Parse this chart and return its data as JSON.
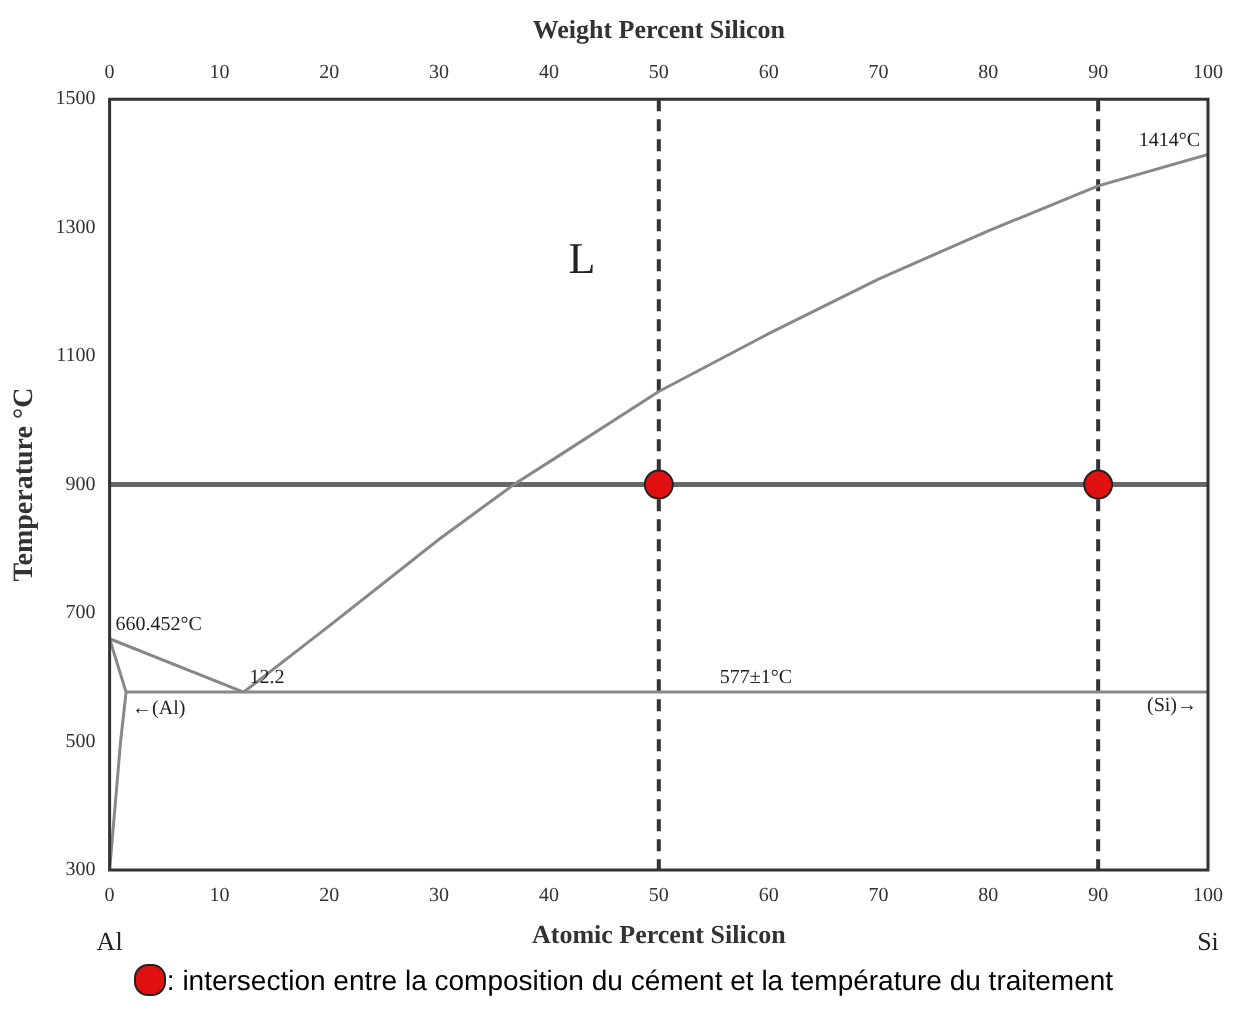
{
  "chart_data": {
    "type": "line",
    "xlabel": "Atomic Percent Silicon",
    "ylabel": "Temperature °C",
    "x2label": "Weight Percent Silicon",
    "xlim": [
      0,
      100
    ],
    "xticks": [
      0,
      10,
      20,
      30,
      40,
      50,
      60,
      70,
      80,
      90,
      100
    ],
    "x2lim": [
      0,
      100
    ],
    "x2ticks": [
      0,
      10,
      20,
      30,
      40,
      50,
      60,
      70,
      80,
      90,
      100
    ],
    "ylim": [
      300,
      1500
    ],
    "yticks": [
      300,
      500,
      700,
      900,
      1100,
      1300,
      1500
    ],
    "grid": false,
    "legend": "bottom",
    "marker": "none",
    "line_style": "solid",
    "series": [
      {
        "color": "#888888",
        "x": [
          12.2,
          20,
          30,
          36.8,
          40,
          50,
          60,
          70,
          80,
          90,
          100
        ],
        "values": [
          577,
          680,
          815,
          900,
          935,
          1045,
          1135,
          1220,
          1295,
          1365,
          1414
        ]
      },
      {
        "color": "#888888",
        "x": [
          0,
          12.2
        ],
        "values": [
          660,
          577
        ]
      },
      {
        "color": "#888888",
        "x": [
          0,
          1.5,
          1,
          0.5,
          0
        ],
        "values": [
          660,
          577,
          500,
          400,
          300
        ]
      },
      {
        "color": "#888888",
        "x": [
          1.5,
          100
        ],
        "values": [
          577,
          577
        ]
      },
      {
        "type": "scatter",
        "marker": "circle",
        "name": ": intersection entre la composition du cément et la température du traitement",
        "color": "#e01010",
        "x": [
          50,
          90
        ],
        "values": [
          900,
          900
        ]
      }
    ],
    "ref_lines": [
      {
        "axis": "x",
        "value": 50,
        "color": "#333333",
        "line_style": "dashed"
      },
      {
        "axis": "x",
        "value": 90,
        "color": "#333333",
        "line_style": "dashed"
      },
      {
        "axis": "y",
        "value": 900,
        "color": "#666666",
        "line_style": "solid"
      }
    ],
    "annotations": [
      "L",
      {
        "text": "1414°C",
        "x": 100,
        "y": 1414
      },
      {
        "text": "660.452°C",
        "x": 0,
        "y": 660
      },
      {
        "text": "12.2",
        "x": 12.2,
        "y": 577
      },
      {
        "text": "577±1°C",
        "x": 55,
        "y": 577
      },
      {
        "text": "←(Al)",
        "x": 1.5,
        "y": 530
      },
      "(Si)→",
      "Al",
      "Si"
    ]
  }
}
